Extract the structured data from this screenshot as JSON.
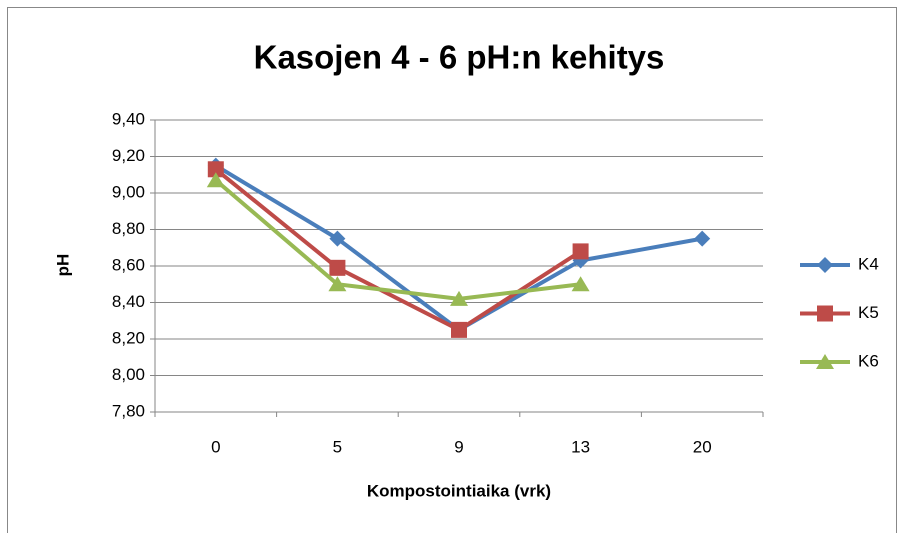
{
  "chart_data": {
    "type": "line",
    "title": "Kasojen 4 - 6 pH:n kehitys",
    "x_label": "Kompostointiaika (vrk)",
    "y_label": "pH",
    "categories": [
      "0",
      "5",
      "9",
      "13",
      "20"
    ],
    "series": [
      {
        "name": "K4",
        "color": "#4a7ebb",
        "marker": "diamond",
        "values": [
          9.15,
          8.75,
          8.25,
          8.63,
          8.75
        ]
      },
      {
        "name": "K5",
        "color": "#be4b48",
        "marker": "square",
        "values": [
          9.13,
          8.59,
          8.25,
          8.68,
          null
        ]
      },
      {
        "name": "K6",
        "color": "#98b954",
        "marker": "triangle",
        "values": [
          9.07,
          8.5,
          8.42,
          8.5,
          null
        ]
      }
    ],
    "ylim": [
      7.8,
      9.4
    ],
    "yticks": [
      {
        "value": 7.8,
        "label": "7,80"
      },
      {
        "value": 8.0,
        "label": "8,00"
      },
      {
        "value": 8.2,
        "label": "8,20"
      },
      {
        "value": 8.4,
        "label": "8,40"
      },
      {
        "value": 8.6,
        "label": "8,60"
      },
      {
        "value": 8.8,
        "label": "8,80"
      },
      {
        "value": 9.0,
        "label": "9,00"
      },
      {
        "value": 9.2,
        "label": "9,20"
      },
      {
        "value": 9.4,
        "label": "9,40"
      }
    ],
    "grid": true,
    "legend": "right"
  }
}
